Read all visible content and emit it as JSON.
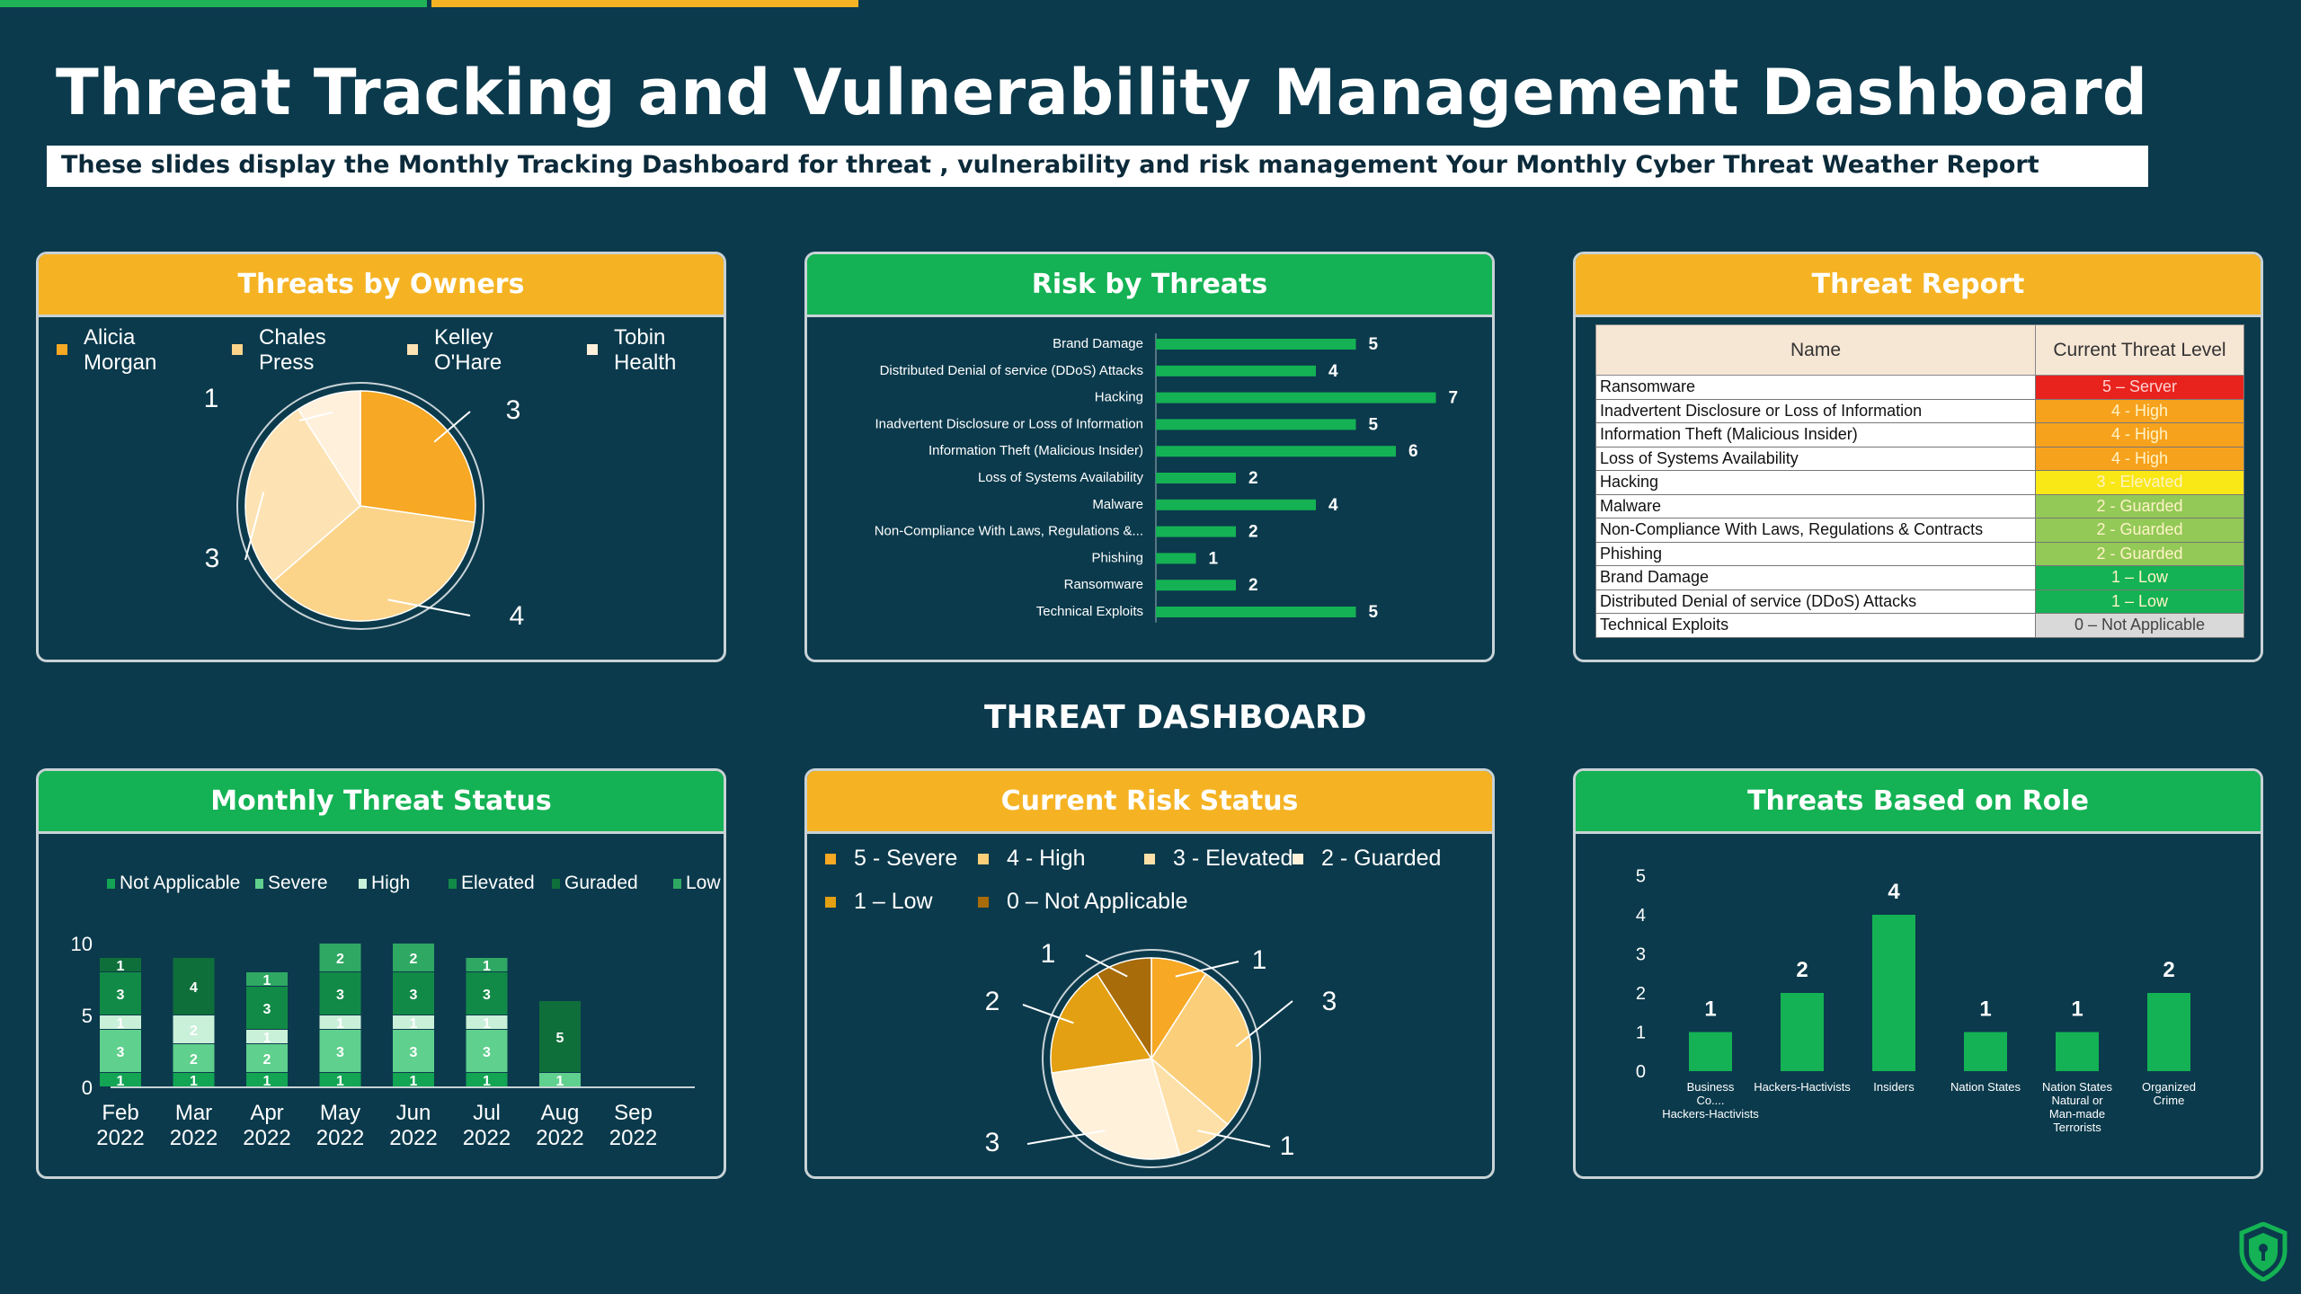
{
  "page": {
    "title": "Threat Tracking and Vulnerability Management Dashboard",
    "subtitle": "These slides display the Monthly  Tracking Dashboard  for threat ,  vulnerability and risk  management Your Monthly Cyber Threat Weather Report",
    "dashboard_label": "THREAT DASHBOARD"
  },
  "colors": {
    "background": "#0b3a4c",
    "accent_green": "#14b254",
    "accent_orange": "#f5b324"
  },
  "icons": [
    "shield-logo-icon"
  ],
  "panels": {
    "owners": {
      "title": "Threats by Owners",
      "legend": [
        {
          "label1": "Alicia",
          "label2": "Morgan"
        },
        {
          "label1": "Chales",
          "label2": "Press"
        },
        {
          "label1": "Kelley",
          "label2": "O'Hare"
        },
        {
          "label1": "Tobin",
          "label2": "Health"
        }
      ]
    },
    "risk": {
      "title": "Risk by Threats"
    },
    "report": {
      "title": "Threat Report",
      "col_name": "Name",
      "col_level": "Current Threat Level",
      "rows": [
        {
          "name": "Ransomware",
          "level": "5 – Server",
          "color": "#e8231d"
        },
        {
          "name": "Inadvertent Disclosure or Loss of Information",
          "level": "4 - High",
          "color": "#f7a21c"
        },
        {
          "name": "Information Theft (Malicious Insider)",
          "level": "4 - High",
          "color": "#f7a21c"
        },
        {
          "name": "Loss of Systems Availability",
          "level": "4 - High",
          "color": "#f7a21c"
        },
        {
          "name": "Hacking",
          "level": "3 - Elevated",
          "color": "#f9e716"
        },
        {
          "name": "Malware",
          "level": "2 - Guarded",
          "color": "#93c957"
        },
        {
          "name": "Non-Compliance With Laws, Regulations & Contracts",
          "level": "2 - Guarded",
          "color": "#93c957"
        },
        {
          "name": "Phishing",
          "level": "2 - Guarded",
          "color": "#93c957"
        },
        {
          "name": "Brand Damage",
          "level": "1 – Low",
          "color": "#14b254"
        },
        {
          "name": "Distributed Denial of service (DDoS) Attacks",
          "level": "1 – Low",
          "color": "#14b254"
        },
        {
          "name": "Technical Exploits",
          "level": "0 – Not Applicable",
          "color": "#d9d9d9"
        }
      ]
    },
    "monthly": {
      "title": "Monthly Threat Status"
    },
    "current": {
      "title": "Current Risk Status",
      "legend": [
        "5 - Severe",
        "4 - High",
        "3 - Elevated",
        "2 - Guarded",
        "1 – Low",
        "0 – Not Applicable"
      ]
    },
    "role": {
      "title": "Threats Based on Role"
    }
  },
  "chart_data": [
    {
      "id": "owners",
      "type": "pie",
      "labels": [
        "Alicia Morgan",
        "Chales Press",
        "Kelley O'Hare",
        "Tobin Health"
      ],
      "values": [
        3,
        4,
        3,
        1
      ],
      "colors": [
        "#f7a824",
        "#fbd48a",
        "#fde3b3",
        "#fff0dc"
      ]
    },
    {
      "id": "risk",
      "type": "bar",
      "orientation": "horizontal",
      "categories": [
        "Brand Damage",
        "Distributed Denial of service (DDoS) Attacks",
        "Hacking",
        "Inadvertent Disclosure or Loss of Information",
        "Information Theft (Malicious Insider)",
        "Loss of Systems Availability",
        "Malware",
        "Non-Compliance With Laws, Regulations &...",
        "Phishing",
        "Ransomware",
        "Technical Exploits"
      ],
      "values": [
        5,
        4,
        7,
        5,
        6,
        2,
        4,
        2,
        1,
        2,
        5
      ],
      "color": "#14b254"
    },
    {
      "id": "monthly",
      "type": "bar",
      "stacked": true,
      "categories": [
        "Feb 2022",
        "Mar 2022",
        "Apr 2022",
        "May 2022",
        "Jun 2022",
        "Jul 2022",
        "Aug 2022",
        "Sep 2022"
      ],
      "ylim": [
        0,
        10
      ],
      "yticks": [
        0,
        5,
        10
      ],
      "series": [
        {
          "name": "Not Applicable",
          "values": [
            1,
            1,
            1,
            1,
            1,
            1,
            0,
            0
          ],
          "color": "#13a454"
        },
        {
          "name": "Severe",
          "values": [
            3,
            2,
            2,
            3,
            3,
            3,
            1,
            0
          ],
          "color": "#5fd08d"
        },
        {
          "name": "High",
          "values": [
            1,
            2,
            1,
            1,
            1,
            1,
            0,
            0
          ],
          "color": "#c9f0d9"
        },
        {
          "name": "Elevated",
          "values": [
            3,
            0,
            3,
            3,
            3,
            3,
            0,
            0
          ],
          "color": "#128a47"
        },
        {
          "name": "Guraded",
          "values": [
            1,
            4,
            0,
            0,
            0,
            0,
            5,
            0
          ],
          "color": "#0f6f3a"
        },
        {
          "name": "Low",
          "values": [
            0,
            0,
            1,
            2,
            2,
            1,
            0,
            0
          ],
          "color": "#2fa863"
        }
      ]
    },
    {
      "id": "current",
      "type": "pie",
      "labels": [
        "5 - Severe",
        "4 - High",
        "3 - Elevated",
        "2 - Guarded",
        "1 – Low",
        "0 – Not Applicable"
      ],
      "values": [
        1,
        3,
        1,
        3,
        2,
        1
      ],
      "colors": [
        "#f7a824",
        "#fbcf7a",
        "#fde0a8",
        "#fff1da",
        "#e3a012",
        "#a86c0a"
      ]
    },
    {
      "id": "role",
      "type": "bar",
      "categories": [
        "Business Co.... Hackers-Hactivists",
        "Hackers-Hactivists",
        "Insiders",
        "Nation States",
        "Nation States Natural or Man-made Terrorists",
        "Organized Crime"
      ],
      "values": [
        1,
        2,
        4,
        1,
        1,
        2
      ],
      "ylim": [
        0,
        5
      ],
      "yticks": [
        0,
        1,
        2,
        3,
        4,
        5
      ],
      "color": "#14b254"
    }
  ]
}
